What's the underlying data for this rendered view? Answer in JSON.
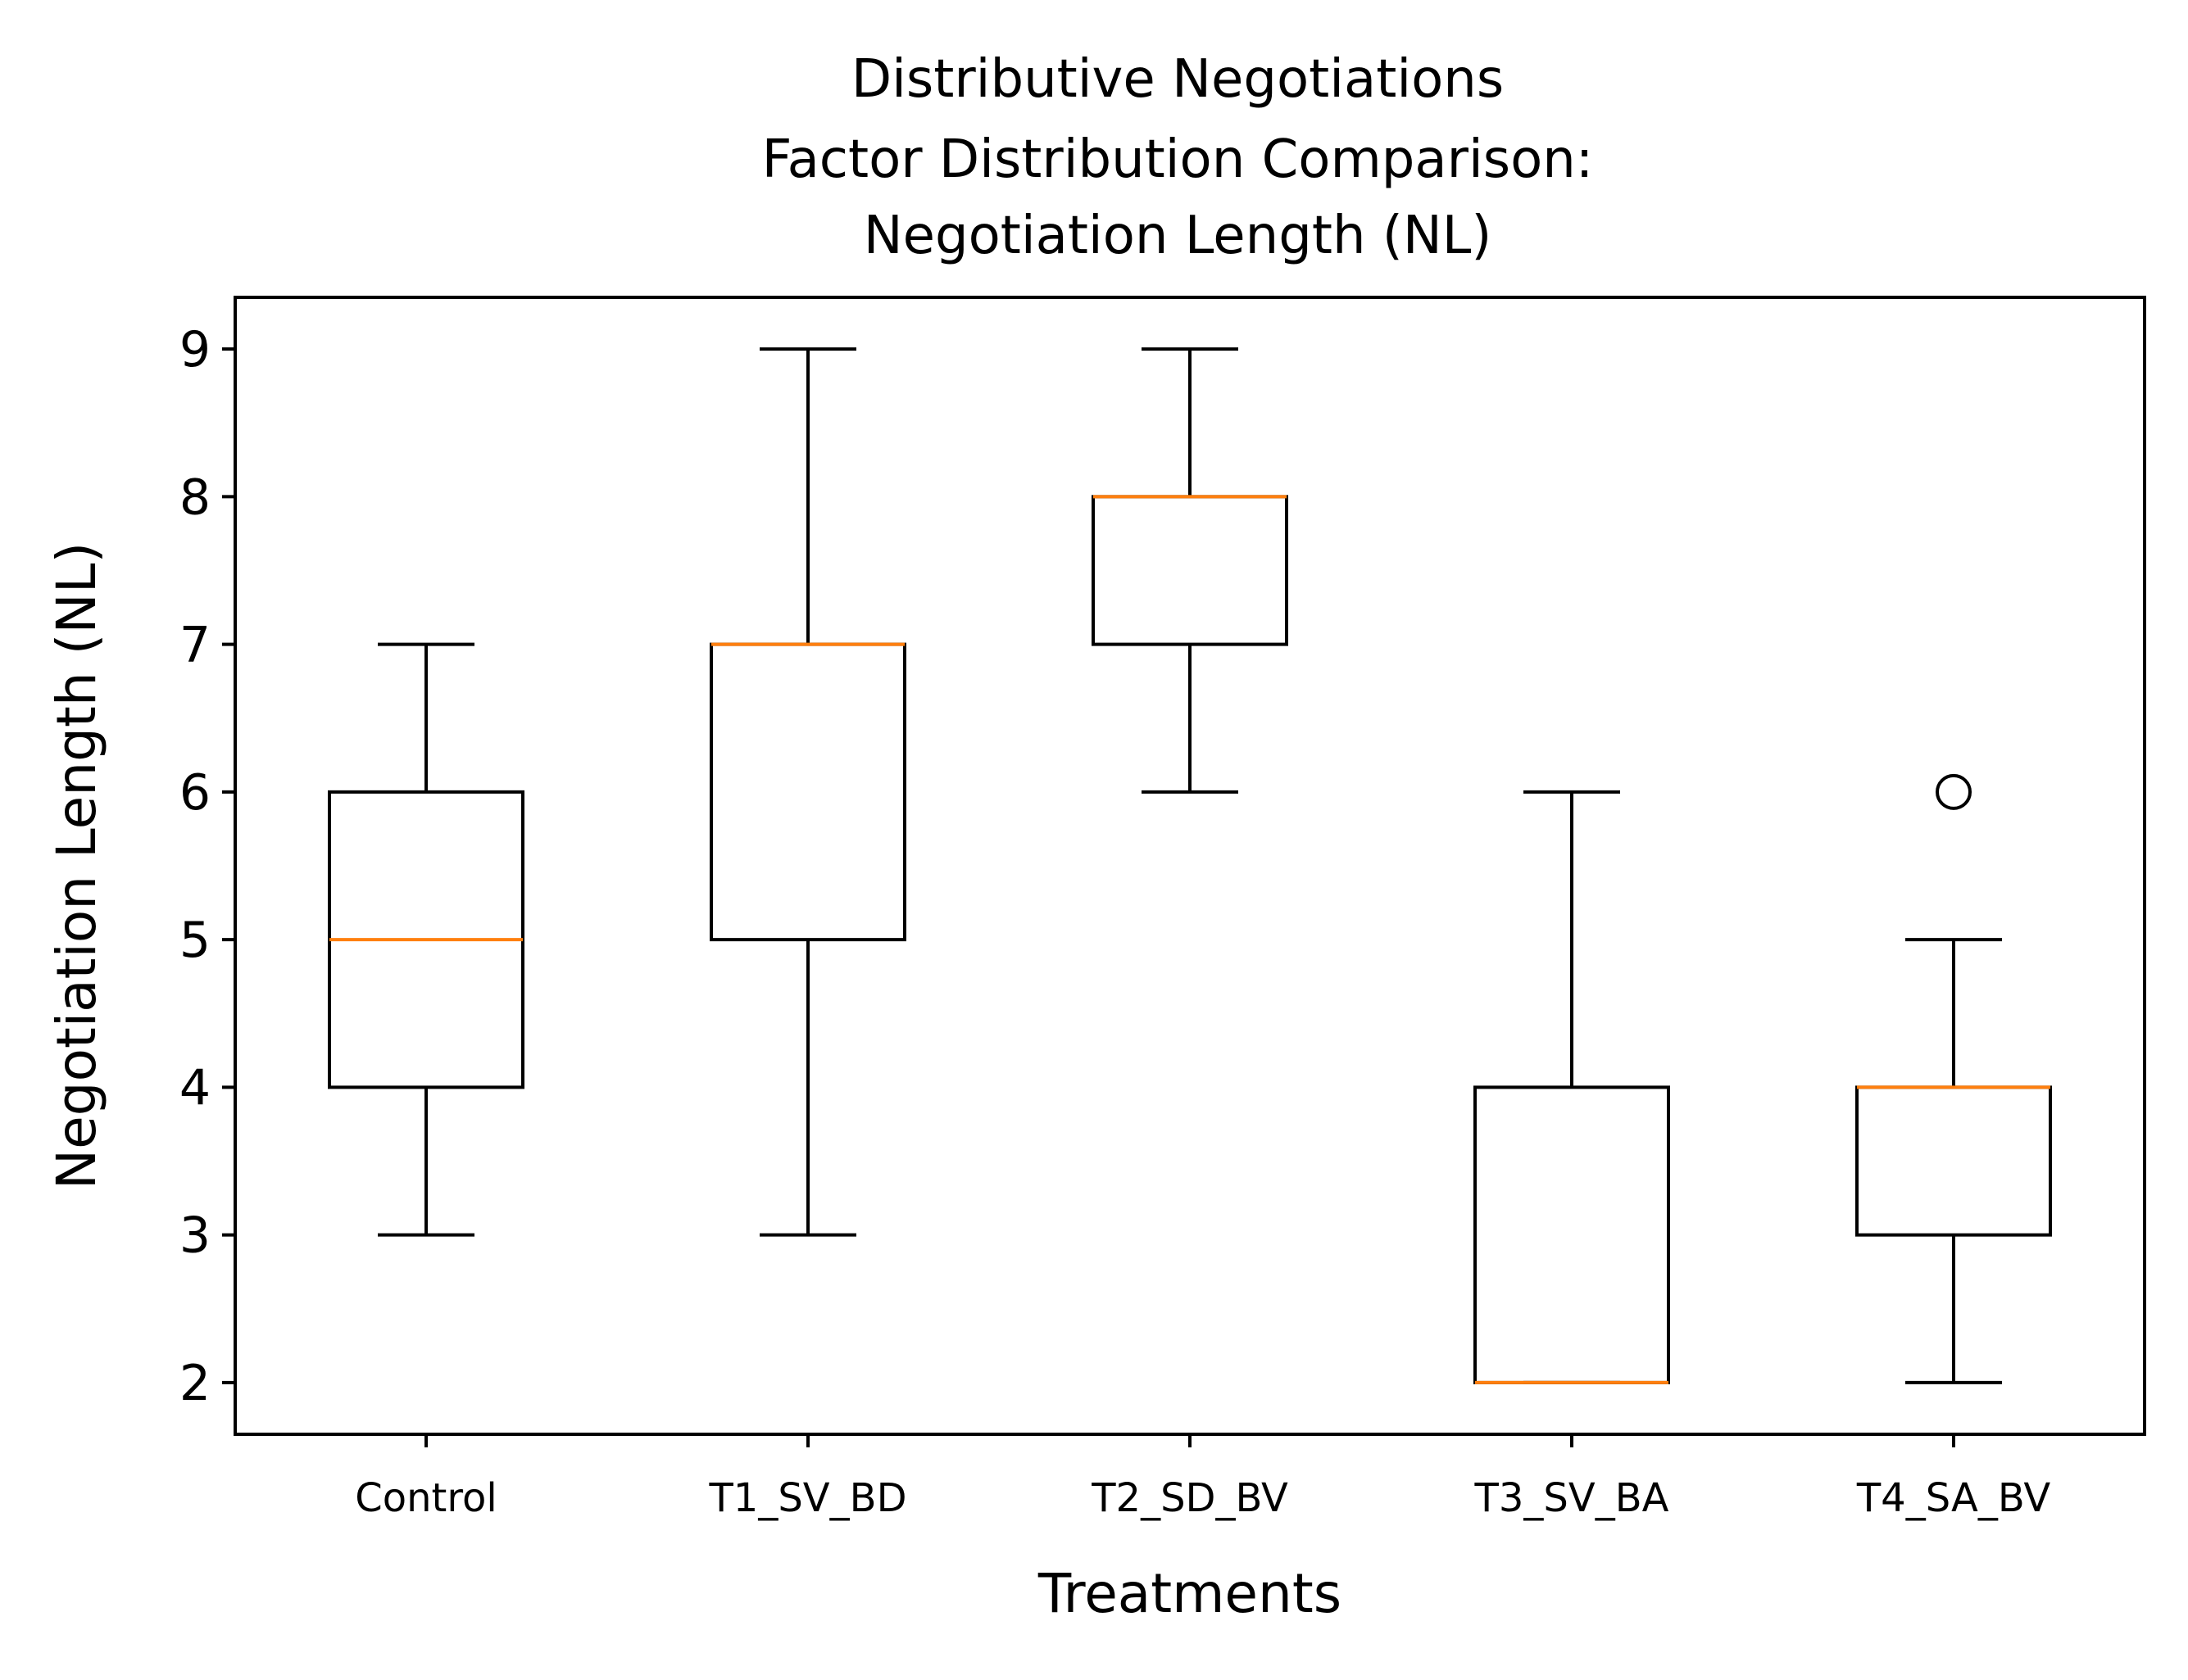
{
  "chart_data": {
    "type": "boxplot",
    "title_lines": [
      "Distributive Negotiations",
      "Factor Distribution Comparison:",
      "Negotiation Length (NL)"
    ],
    "xlabel": "Treatments",
    "ylabel": "Negotiation Length (NL)",
    "ylim": [
      1.65,
      9.35
    ],
    "yticks": [
      "2",
      "3",
      "4",
      "5",
      "6",
      "7",
      "8",
      "9"
    ],
    "ytick_values": [
      2,
      3,
      4,
      5,
      6,
      7,
      8,
      9
    ],
    "grid": false,
    "categories": [
      "Control",
      "T1_SV_BD",
      "T2_SD_BV",
      "T3_SV_BA",
      "T4_SA_BV"
    ],
    "boxes": [
      {
        "category": "Control",
        "whisker_low": 3,
        "q1": 4,
        "median": 5,
        "q3": 6,
        "whisker_high": 7,
        "outliers": []
      },
      {
        "category": "T1_SV_BD",
        "whisker_low": 3,
        "q1": 5,
        "median": 7,
        "q3": 7,
        "whisker_high": 9,
        "outliers": []
      },
      {
        "category": "T2_SD_BV",
        "whisker_low": 6,
        "q1": 7,
        "median": 8,
        "q3": 8,
        "whisker_high": 9,
        "outliers": []
      },
      {
        "category": "T3_SV_BA",
        "whisker_low": 2,
        "q1": 2,
        "median": 2,
        "q3": 4,
        "whisker_high": 6,
        "outliers": []
      },
      {
        "category": "T4_SA_BV",
        "whisker_low": 2,
        "q1": 3,
        "median": 4,
        "q3": 4,
        "whisker_high": 5,
        "outliers": [
          6
        ]
      }
    ],
    "colors": {
      "box": "#000000",
      "median": "#ff7f0e",
      "outlier": "#000000"
    }
  }
}
